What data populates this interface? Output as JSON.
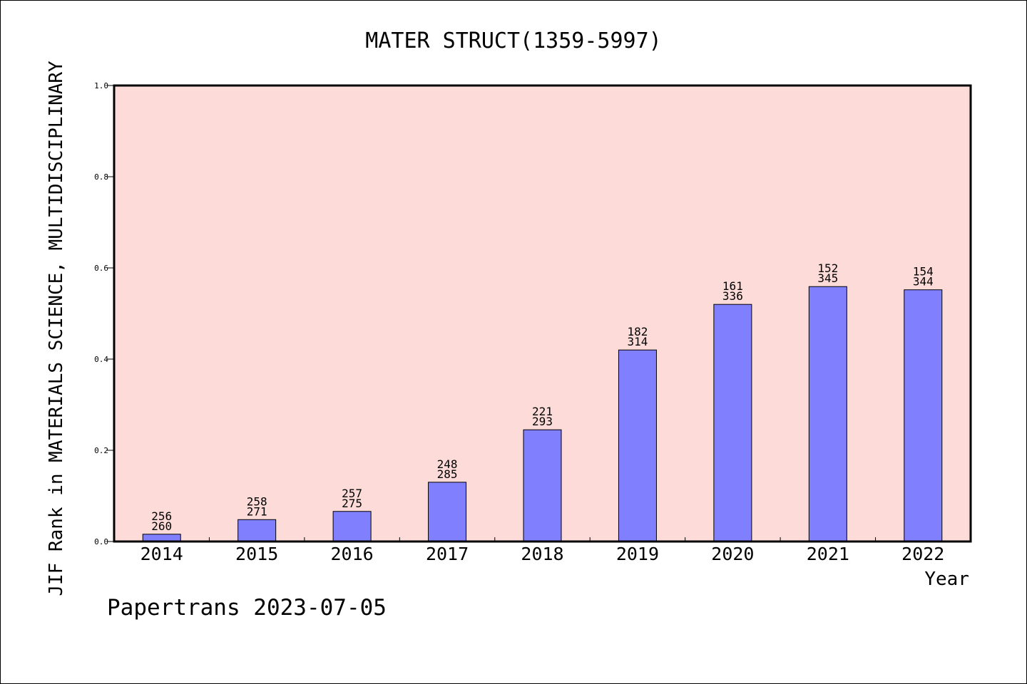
{
  "chart_data": {
    "type": "bar",
    "title": "MATER STRUCT(1359-5997)",
    "xlabel": "Year",
    "ylabel": "JIF Rank in MATERIALS SCIENCE, MULTIDISCIPLINARY",
    "categories": [
      "2014",
      "2015",
      "2016",
      "2017",
      "2018",
      "2019",
      "2020",
      "2021",
      "2022"
    ],
    "values": [
      0.016,
      0.048,
      0.066,
      0.13,
      0.245,
      0.42,
      0.52,
      0.559,
      0.552
    ],
    "rank_labels": [
      "256",
      "258",
      "257",
      "248",
      "221",
      "182",
      "161",
      "152",
      "154"
    ],
    "total_labels": [
      "260",
      "271",
      "275",
      "285",
      "293",
      "314",
      "336",
      "345",
      "344"
    ],
    "yticks": [
      "0.0",
      "0.2",
      "0.4",
      "0.6",
      "0.8",
      "1.0"
    ],
    "ylim": [
      0,
      1
    ],
    "grid": false,
    "colors": {
      "bar_fill": "#8080ff",
      "plot_background": "#fddbd8",
      "axis": "#000000"
    }
  },
  "footer": {
    "credit": "Papertrans 2023-07-05"
  }
}
